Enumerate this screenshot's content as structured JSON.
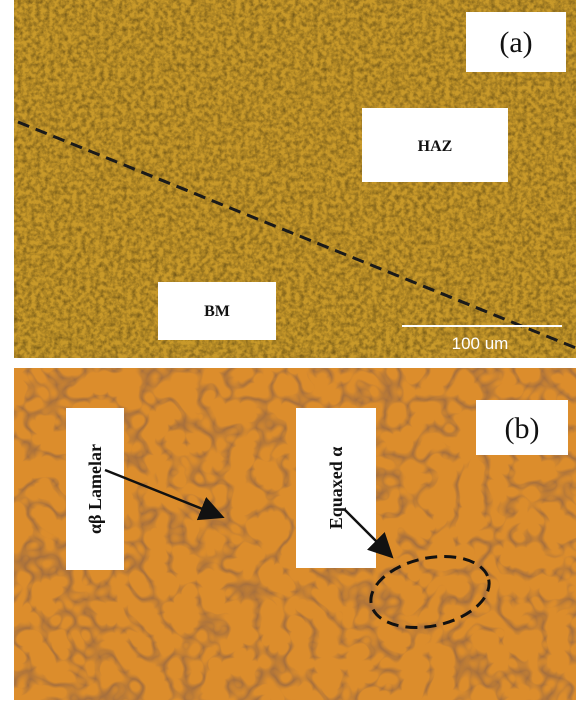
{
  "panel_a": {
    "label": "(a)",
    "regions": [
      "HAZ",
      "BM"
    ],
    "scale_bar": "100 um"
  },
  "panel_b": {
    "label": "(b)",
    "annotations": [
      "αβ Lamelar",
      "Equaxed α"
    ]
  }
}
